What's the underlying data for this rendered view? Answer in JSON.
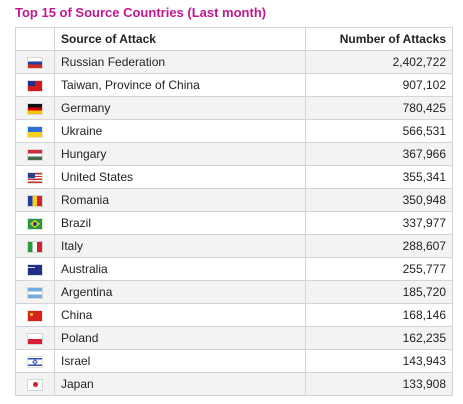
{
  "title": "Top 15 of Source Countries (Last month)",
  "table": {
    "headers": {
      "source": "Source of Attack",
      "count": "Number of Attacks"
    },
    "rows": [
      {
        "flag": "russia-flag-icon",
        "country": "Russian Federation",
        "count": "2,402,722"
      },
      {
        "flag": "taiwan-flag-icon",
        "country": "Taiwan, Province of China",
        "count": "907,102"
      },
      {
        "flag": "germany-flag-icon",
        "country": "Germany",
        "count": "780,425"
      },
      {
        "flag": "ukraine-flag-icon",
        "country": "Ukraine",
        "count": "566,531"
      },
      {
        "flag": "hungary-flag-icon",
        "country": "Hungary",
        "count": "367,966"
      },
      {
        "flag": "united-states-flag-icon",
        "country": "United States",
        "count": "355,341"
      },
      {
        "flag": "romania-flag-icon",
        "country": "Romania",
        "count": "350,948"
      },
      {
        "flag": "brazil-flag-icon",
        "country": "Brazil",
        "count": "337,977"
      },
      {
        "flag": "italy-flag-icon",
        "country": "Italy",
        "count": "288,607"
      },
      {
        "flag": "australia-flag-icon",
        "country": "Australia",
        "count": "255,777"
      },
      {
        "flag": "argentina-flag-icon",
        "country": "Argentina",
        "count": "185,720"
      },
      {
        "flag": "china-flag-icon",
        "country": "China",
        "count": "168,146"
      },
      {
        "flag": "poland-flag-icon",
        "country": "Poland",
        "count": "162,235"
      },
      {
        "flag": "israel-flag-icon",
        "country": "Israel",
        "count": "143,943"
      },
      {
        "flag": "japan-flag-icon",
        "country": "Japan",
        "count": "133,908"
      }
    ]
  },
  "colors": {
    "title": "#c2188f",
    "row_stripe": "#f3f3f3",
    "border": "#d4d4d4"
  }
}
